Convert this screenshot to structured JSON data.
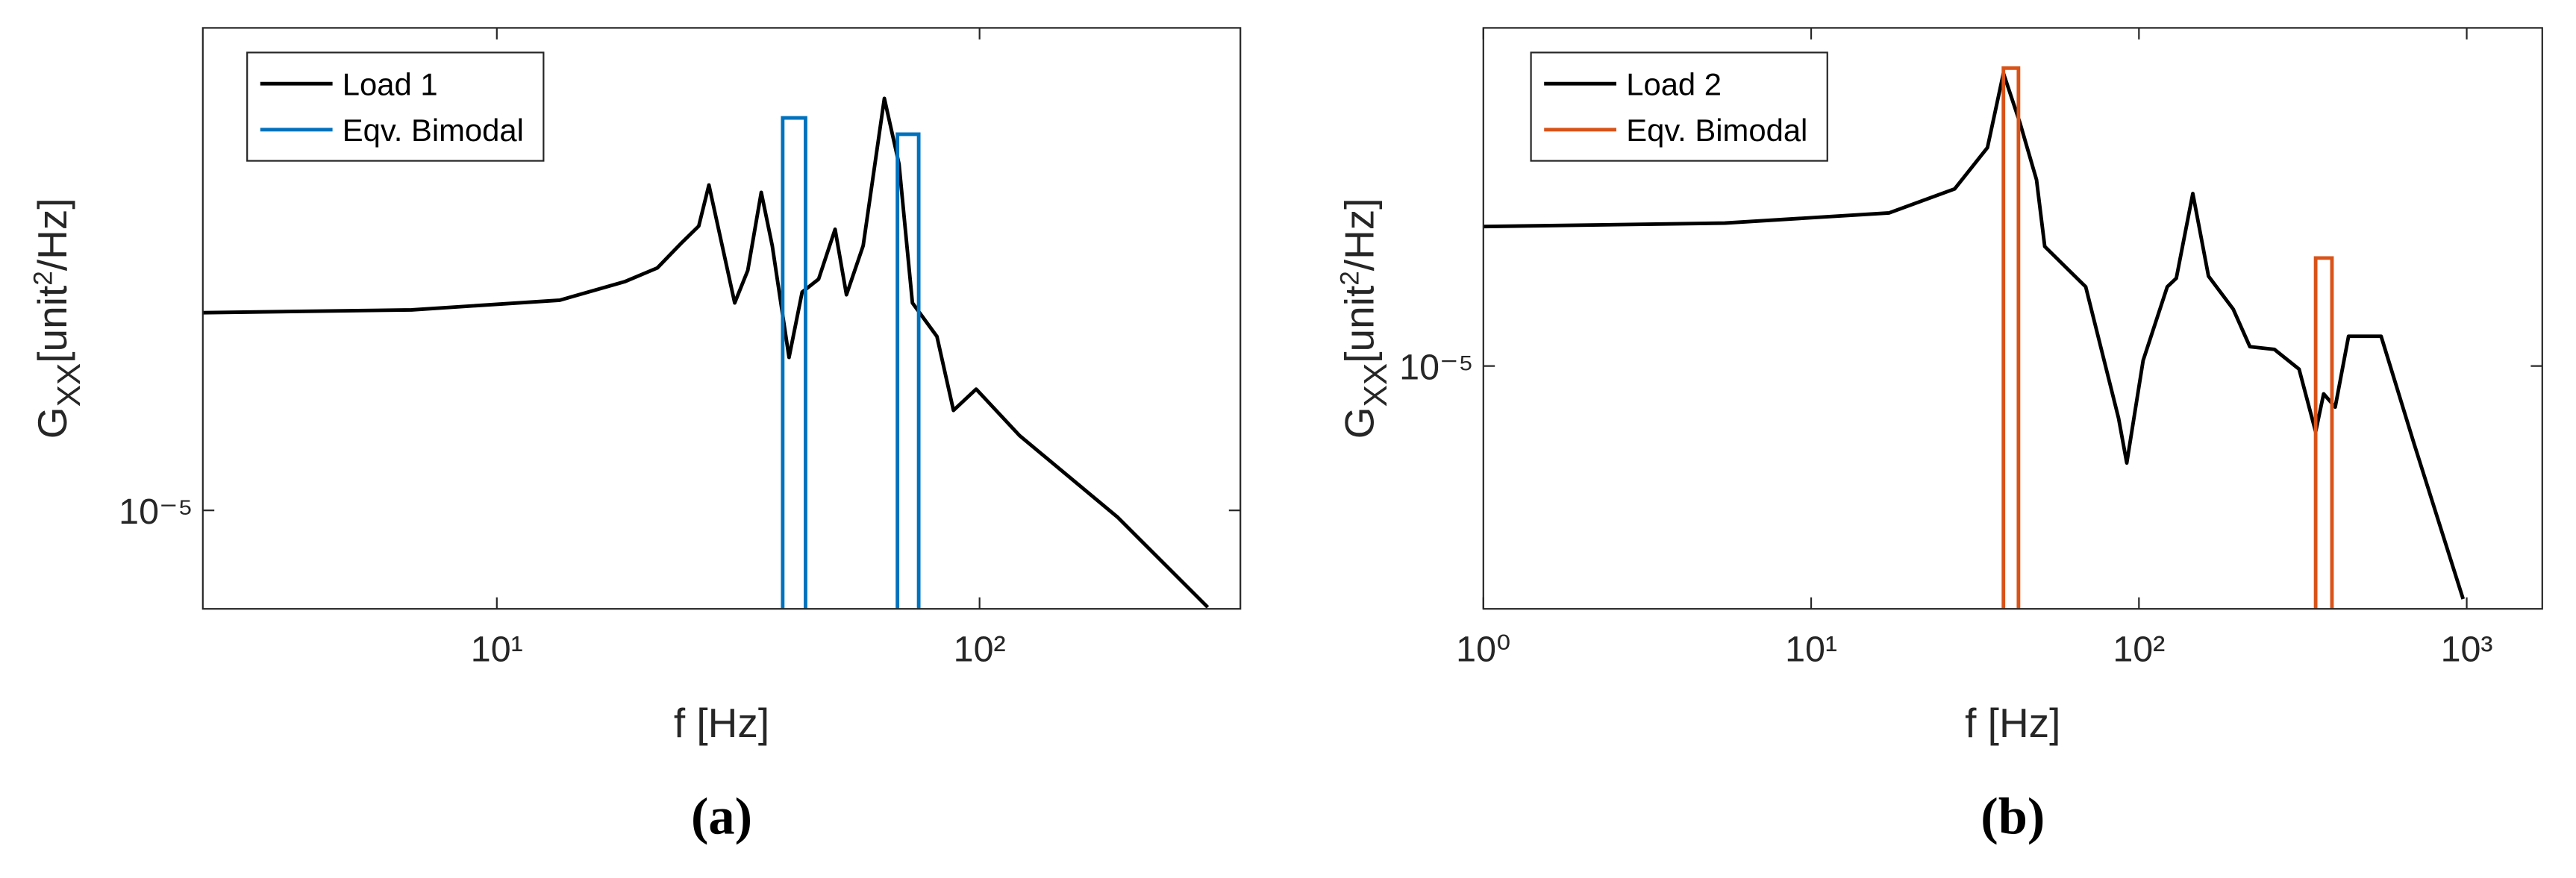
{
  "chart_data": [
    {
      "type": "line",
      "label": "(a)",
      "xlabel": "f [Hz]",
      "ylabel": [
        "G",
        "XX",
        "[unit",
        "2",
        "/Hz]"
      ],
      "xscale": "log",
      "yscale": "log",
      "legend": "upper left",
      "xlim": [
        2.46,
        347
      ],
      "ylim": [
        7.08e-06,
        5.43e-05
      ],
      "xticks": [
        {
          "value": 10,
          "label": "10¹"
        },
        {
          "value": 100,
          "label": "10²"
        }
      ],
      "yticks": [
        {
          "value": 1e-05,
          "label": "10⁻⁵"
        }
      ],
      "series": [
        {
          "name": "Load 1",
          "color": "#000000",
          "x": [
            2.46,
            6.66,
            13.5,
            18.4,
            21.5,
            24.2,
            26.2,
            27.5,
            28.8,
            31.1,
            33.1,
            35.3,
            37.2,
            40.3,
            42.9,
            46.4,
            50.2,
            53.0,
            57.4,
            63.5,
            68.1,
            72.6,
            81.6,
            88.3,
            98.4,
            121,
            193,
            297
          ],
          "values": [
            2e-05,
            2.02e-05,
            2.09e-05,
            2.23e-05,
            2.34e-05,
            2.56e-05,
            2.71e-05,
            3.13e-05,
            2.68e-05,
            2.07e-05,
            2.32e-05,
            3.05e-05,
            2.53e-05,
            1.71e-05,
            2.15e-05,
            2.25e-05,
            2.68e-05,
            2.13e-05,
            2.53e-05,
            4.24e-05,
            3.37e-05,
            2.07e-05,
            1.84e-05,
            1.42e-05,
            1.53e-05,
            1.3e-05,
            9.77e-06,
            7.12e-06
          ]
        },
        {
          "name": "Eqv. Bimodal",
          "color": "#0072BD",
          "bands": [
            {
              "x": [
                39.1,
                43.6
              ],
              "value": 3.96e-05
            },
            {
              "x": [
                67.6,
                74.8
              ],
              "value": 3.74e-05
            }
          ]
        }
      ]
    },
    {
      "type": "line",
      "label": "(b)",
      "xlabel": "f [Hz]",
      "ylabel": [
        "G",
        "XX",
        "[unit",
        "2",
        "/Hz]"
      ],
      "xscale": "log",
      "yscale": "log",
      "legend": "upper left",
      "xlim": [
        1,
        1700
      ],
      "ylim": [
        4.27e-06,
        3.27e-05
      ],
      "xticks": [
        {
          "value": 1,
          "label": "10⁰"
        },
        {
          "value": 10,
          "label": "10¹"
        },
        {
          "value": 100,
          "label": "10²"
        },
        {
          "value": 1000,
          "label": "10³"
        }
      ],
      "yticks": [
        {
          "value": 1e-05,
          "label": "10⁻⁵"
        }
      ],
      "series": [
        {
          "name": "Load 2",
          "color": "#000000",
          "x": [
            1,
            5.45,
            17.3,
            27.4,
            34.5,
            38.6,
            43.4,
            48.7,
            51.6,
            68.8,
            86.7,
            91.8,
            103,
            122,
            130,
            146,
            163,
            194,
            218,
            259,
            308,
            346,
            366,
            397,
            436,
            489,
            548,
            690,
            975
          ],
          "values": [
            1.63e-05,
            1.65e-05,
            1.71e-05,
            1.86e-05,
            2.15e-05,
            2.79e-05,
            2.34e-05,
            1.92e-05,
            1.52e-05,
            1.32e-05,
            8.32e-06,
            7.12e-06,
            1.02e-05,
            1.32e-05,
            1.36e-05,
            1.83e-05,
            1.37e-05,
            1.22e-05,
            1.07e-05,
            1.06e-05,
            9.89e-06,
            7.94e-06,
            9.07e-06,
            8.66e-06,
            1.11e-05,
            1.11e-05,
            1.11e-05,
            7.63e-06,
            4.42e-06
          ]
        },
        {
          "name": "Eqv. Bimodal",
          "color": "#D95319",
          "bands": [
            {
              "x": [
                38.6,
                42.9
              ],
              "value": 2.84e-05
            },
            {
              "x": [
                346,
                388
              ],
              "value": 1.46e-05
            }
          ]
        }
      ]
    }
  ]
}
